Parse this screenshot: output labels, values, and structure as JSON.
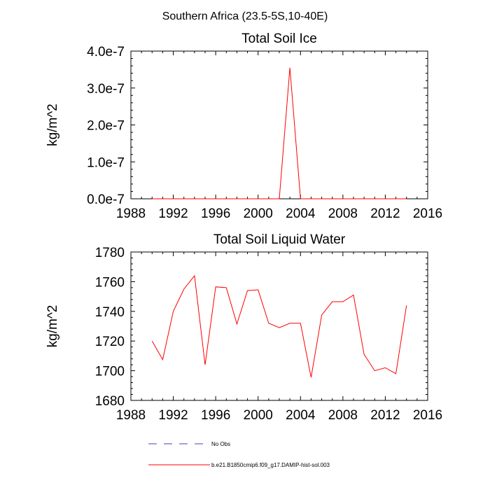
{
  "figure": {
    "suptitle": "Southern Africa (23.5-5S,10-40E)"
  },
  "chart_data": [
    {
      "type": "line",
      "title": "Total Soil Ice",
      "ylabel": "kg/m^2",
      "xlabel": "",
      "xlim": [
        1988,
        2016
      ],
      "ylim": [
        0,
        4e-07
      ],
      "xticks": [
        1988,
        1992,
        1996,
        2000,
        2004,
        2008,
        2012,
        2016
      ],
      "xtick_labels": [
        "1988",
        "1992",
        "1996",
        "2000",
        "2004",
        "2008",
        "2012",
        "2016"
      ],
      "yticks": [
        0,
        1e-07,
        2e-07,
        3e-07,
        4e-07
      ],
      "ytick_labels": [
        "0.0e-7",
        "1.0e-7",
        "2.0e-7",
        "3.0e-7",
        "4.0e-7"
      ],
      "series": [
        {
          "name": "b.e21.B1850cmip6.f09_g17.DAMIP-hist-sol.003",
          "color": "#ff0000",
          "x": [
            1990,
            1991,
            1992,
            1993,
            1994,
            1995,
            1996,
            1997,
            1998,
            1999,
            2000,
            2001,
            2002,
            2003,
            2004,
            2005,
            2006,
            2007,
            2008,
            2009,
            2010,
            2011,
            2012,
            2013,
            2014
          ],
          "y": [
            0,
            0,
            0,
            0,
            0,
            0,
            0,
            0,
            0,
            0,
            0,
            0,
            0,
            3.55e-07,
            0,
            0,
            0,
            0,
            0,
            0,
            0,
            0,
            0,
            0,
            0
          ]
        }
      ]
    },
    {
      "type": "line",
      "title": "Total Soil Liquid Water",
      "ylabel": "kg/m^2",
      "xlabel": "",
      "xlim": [
        1988,
        2016
      ],
      "ylim": [
        1680,
        1780
      ],
      "xticks": [
        1988,
        1992,
        1996,
        2000,
        2004,
        2008,
        2012,
        2016
      ],
      "xtick_labels": [
        "1988",
        "1992",
        "1996",
        "2000",
        "2004",
        "2008",
        "2012",
        "2016"
      ],
      "yticks": [
        1680,
        1700,
        1720,
        1740,
        1760,
        1780
      ],
      "ytick_labels": [
        "1680",
        "1700",
        "1720",
        "1740",
        "1760",
        "1780"
      ],
      "series": [
        {
          "name": "b.e21.B1850cmip6.f09_g17.DAMIP-hist-sol.003",
          "color": "#ff0000",
          "x": [
            1990,
            1991,
            1992,
            1993,
            1994,
            1995,
            1996,
            1997,
            1998,
            1999,
            2000,
            2001,
            2002,
            2003,
            2004,
            2005,
            2006,
            2007,
            2008,
            2009,
            2010,
            2011,
            2012,
            2013,
            2014
          ],
          "y": [
            1720,
            1707.5,
            1740,
            1755,
            1764,
            1704,
            1756.5,
            1756,
            1731.5,
            1754,
            1754.5,
            1732,
            1729,
            1732,
            1732,
            1695.5,
            1737.5,
            1746.5,
            1746.5,
            1751,
            1711,
            1700,
            1702,
            1698,
            1744
          ]
        }
      ]
    }
  ],
  "legend": {
    "entries": [
      {
        "label": "No Obs",
        "color": "#4444aa",
        "style": "dashed"
      },
      {
        "label": "b.e21.B1850cmip6.f09_g17.DAMIP-hist-sol.003",
        "color": "#ff0000",
        "style": "solid"
      }
    ]
  }
}
